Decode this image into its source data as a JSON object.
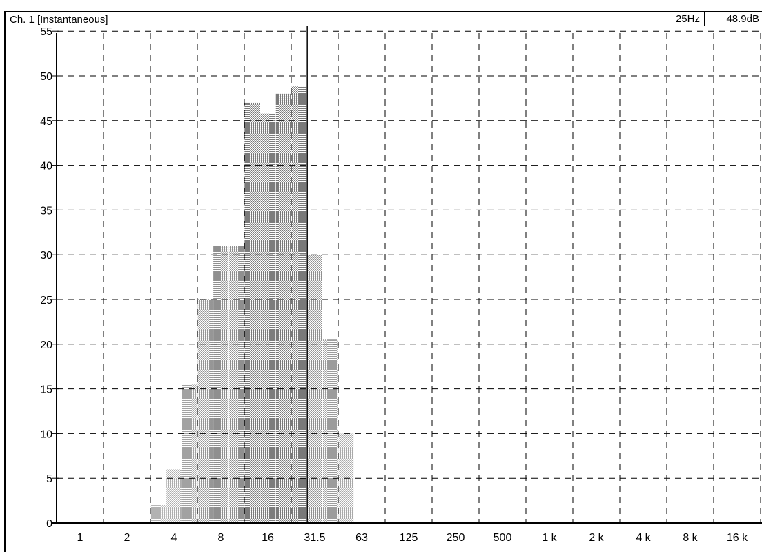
{
  "window": {
    "title": "Ch. 1 [Instantaneous]"
  },
  "readout": {
    "frequency": "25Hz",
    "level": "48.9dB"
  },
  "chart_data": {
    "type": "bar",
    "x_scale": "octave (log2), 1/3-octave bands",
    "x_tick_labels": [
      "1",
      "2",
      "4",
      "8",
      "16",
      "31.5",
      "63",
      "125",
      "250",
      "500",
      "1 k",
      "2 k",
      "4 k",
      "8 k",
      "16 k"
    ],
    "y_tick_labels": [
      "0",
      "5",
      "10",
      "15",
      "20",
      "25",
      "30",
      "35",
      "40",
      "45",
      "50",
      "55"
    ],
    "ylim": [
      0,
      57
    ],
    "grid": true,
    "cursor_band": "25",
    "series": [
      {
        "bands": [
          "3.15",
          "4",
          "5",
          "6.3",
          "8",
          "10",
          "12.5",
          "16",
          "20",
          "25",
          "31.5",
          "40",
          "50"
        ],
        "values": [
          2,
          6,
          15.5,
          25,
          31,
          31,
          47,
          45.8,
          48,
          48.9,
          30,
          20.5,
          10
        ]
      }
    ],
    "colors": {
      "bar_dots": "#1a1a1a",
      "grid": "#000000",
      "axis": "#000000"
    }
  }
}
